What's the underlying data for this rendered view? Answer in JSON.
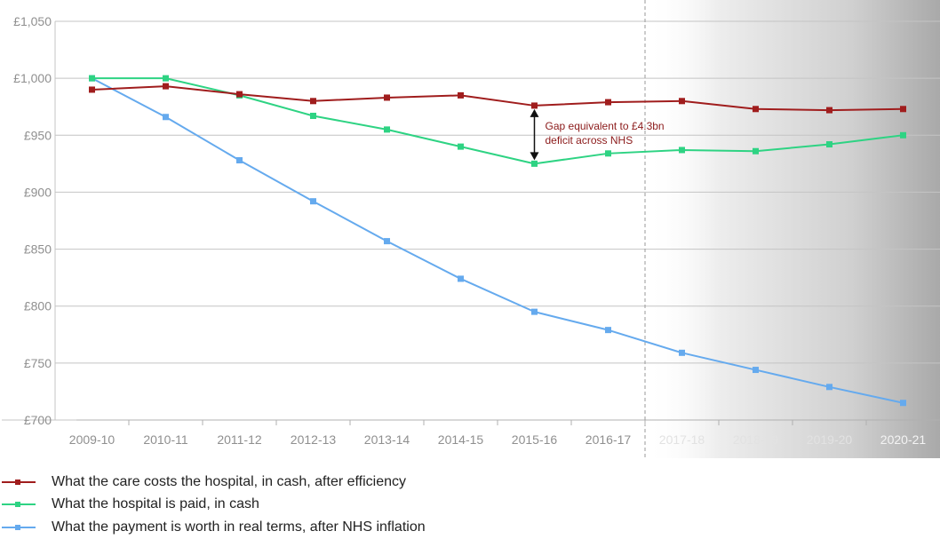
{
  "colors": {
    "costs": "#a01d1d",
    "paid": "#2ed383",
    "real": "#65aaee",
    "grid": "#c4c4c4",
    "tick": "#8f8f8f"
  },
  "chart_data": {
    "type": "line",
    "title": "",
    "xlabel": "",
    "ylabel": "",
    "ylim": [
      700,
      1050
    ],
    "y_ticks": [
      700,
      750,
      800,
      850,
      900,
      950,
      1000,
      1050
    ],
    "y_tick_labels": [
      "£700",
      "£750",
      "£800",
      "£850",
      "£900",
      "£950",
      "£1,000",
      "£1,050"
    ],
    "categories": [
      "2009-10",
      "2010-11",
      "2011-12",
      "2012-13",
      "2013-14",
      "2014-15",
      "2015-16",
      "2016-17",
      "2017-18",
      "2018-19",
      "2019-20",
      "2020-21"
    ],
    "projection_start": "2017-18",
    "series": [
      {
        "key": "costs",
        "name": "What the care costs the hospital, in cash, after efficiency",
        "values": [
          990,
          993,
          986,
          980,
          983,
          985,
          976,
          979,
          980,
          973,
          972,
          973
        ]
      },
      {
        "key": "paid",
        "name": "What the hospital is paid, in cash",
        "values": [
          1000,
          1000,
          985,
          967,
          955,
          940,
          925,
          934,
          937,
          936,
          942,
          950
        ]
      },
      {
        "key": "real",
        "name": "What the payment is worth in real terms, after NHS inflation",
        "values": [
          1000,
          966,
          928,
          892,
          857,
          824,
          795,
          779,
          759,
          744,
          729,
          715
        ]
      }
    ],
    "annotation": {
      "category": "2015-16",
      "from_value": 925,
      "to_value": 976,
      "lines": [
        "Gap equivalent to £4.3bn",
        "deficit across NHS"
      ]
    }
  }
}
